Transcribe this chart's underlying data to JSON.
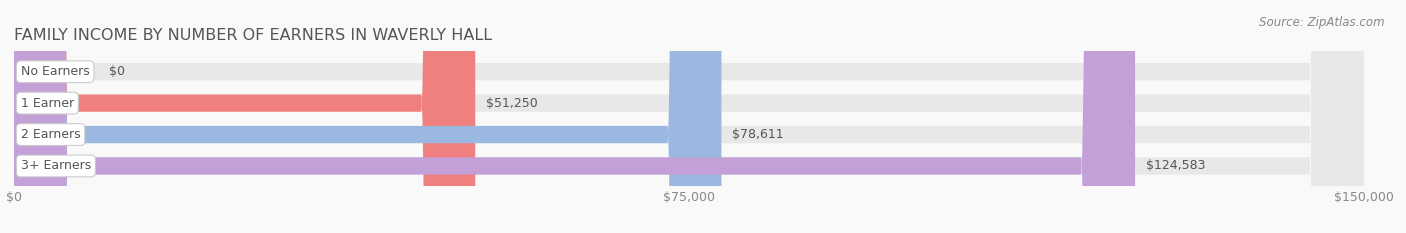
{
  "title": "FAMILY INCOME BY NUMBER OF EARNERS IN WAVERLY HALL",
  "source": "Source: ZipAtlas.com",
  "categories": [
    "No Earners",
    "1 Earner",
    "2 Earners",
    "3+ Earners"
  ],
  "values": [
    0,
    51250,
    78611,
    124583
  ],
  "labels": [
    "$0",
    "$51,250",
    "$78,611",
    "$124,583"
  ],
  "bar_colors": [
    "#f5c5a3",
    "#f08080",
    "#9ab8e0",
    "#c3a0d8"
  ],
  "bar_bg_color": "#e8e8e8",
  "xlim": [
    0,
    150000
  ],
  "xticks": [
    0,
    75000,
    150000
  ],
  "xticklabels": [
    "$0",
    "$75,000",
    "$150,000"
  ],
  "title_fontsize": 11.5,
  "label_fontsize": 9,
  "tick_fontsize": 9,
  "source_fontsize": 8.5,
  "bar_height": 0.55,
  "fig_bg_color": "#f9f9f9",
  "title_color": "#555555",
  "label_color": "#555555",
  "tick_color": "#888888",
  "source_color": "#888888"
}
